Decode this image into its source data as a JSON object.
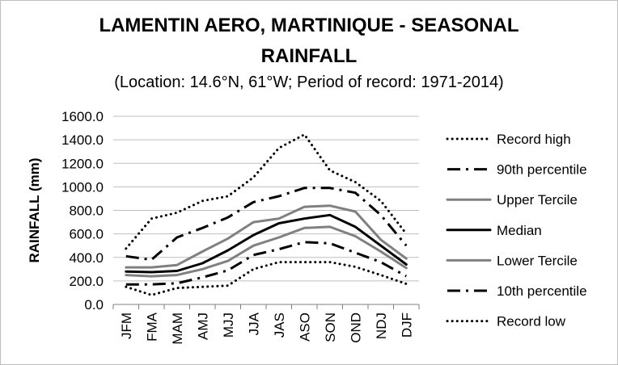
{
  "chart_data": {
    "type": "line",
    "title": "LAMENTIN AERO, MARTINIQUE - SEASONAL",
    "title_line2": "RAINFALL",
    "subtitle": "(Location: 14.6°N, 61°W; Period of record: 1971-2014)",
    "ylabel": "RAINFALL (mm)",
    "xlabel": "",
    "ylim": [
      0,
      1600
    ],
    "ytick_labels": [
      "0.0",
      "200.0",
      "400.0",
      "600.0",
      "800.0",
      "1000.0",
      "1200.0",
      "1400.0",
      "1600.0"
    ],
    "categories": [
      "JFM",
      "FMA",
      "MAM",
      "AMJ",
      "MJJ",
      "JJA",
      "JAS",
      "ASO",
      "SON",
      "OND",
      "NDJ",
      "DJF"
    ],
    "grid": true,
    "legend_placement": "right",
    "series": [
      {
        "name": "Record high",
        "style": "dotted",
        "color": "#000000",
        "values": [
          475,
          730,
          780,
          880,
          920,
          1080,
          1330,
          1445,
          1140,
          1040,
          880,
          600
        ]
      },
      {
        "name": "90th percentile",
        "style": "dashdot",
        "color": "#000000",
        "values": [
          410,
          380,
          570,
          650,
          740,
          870,
          920,
          990,
          990,
          950,
          760,
          500
        ]
      },
      {
        "name": "Upper Tercile",
        "style": "solid",
        "color": "#808080",
        "values": [
          315,
          315,
          335,
          450,
          560,
          700,
          730,
          830,
          840,
          790,
          550,
          390
        ]
      },
      {
        "name": "Median",
        "style": "solid",
        "color": "#000000",
        "values": [
          280,
          275,
          285,
          350,
          460,
          590,
          690,
          730,
          760,
          660,
          500,
          340
        ]
      },
      {
        "name": "Lower Tercile",
        "style": "solid",
        "color": "#808080",
        "values": [
          250,
          240,
          250,
          300,
          370,
          500,
          570,
          650,
          660,
          580,
          450,
          310
        ]
      },
      {
        "name": "10th percentile",
        "style": "dashdot",
        "color": "#000000",
        "values": [
          170,
          170,
          180,
          230,
          290,
          420,
          470,
          530,
          520,
          440,
          360,
          240
        ]
      },
      {
        "name": "Record low",
        "style": "dotted",
        "color": "#000000",
        "values": [
          150,
          80,
          140,
          150,
          160,
          300,
          360,
          360,
          360,
          320,
          250,
          175
        ]
      }
    ]
  }
}
